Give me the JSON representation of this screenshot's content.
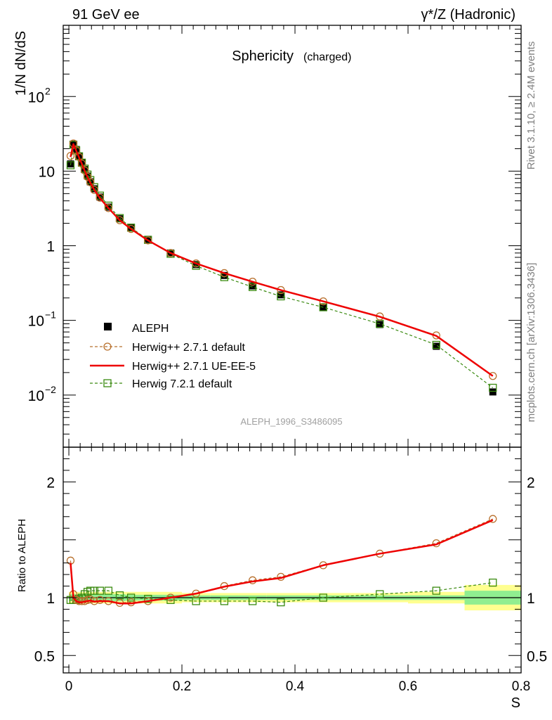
{
  "header": {
    "left": "91 GeV ee",
    "right": "γ*/Z (Hadronic)"
  },
  "side_labels": {
    "rivet": "Rivet 3.1.10, ≥ 2.4M events",
    "mcplots": "mcplots.cern.ch [arXiv:1306.3436]"
  },
  "watermark": "ALEPH_1996_S3486095",
  "chart_data": [
    {
      "type": "line",
      "panel": "main",
      "title": "Sphericity",
      "title_suffix": "(charged)",
      "ylabel": "1/N dN/dS",
      "yscale": "log",
      "ylim": [
        0.002,
        900
      ],
      "xlim": [
        -0.01,
        0.8
      ],
      "y_ticks": [
        {
          "value": 100,
          "label": "10",
          "exp": "2"
        },
        {
          "value": 10,
          "label": "10",
          "exp": ""
        },
        {
          "value": 1,
          "label": "1",
          "exp": ""
        },
        {
          "value": 0.1,
          "label": "10",
          "exp": "−1"
        },
        {
          "value": 0.01,
          "label": "10",
          "exp": "−2"
        }
      ],
      "x": [
        0.003,
        0.008,
        0.013,
        0.018,
        0.023,
        0.028,
        0.033,
        0.038,
        0.045,
        0.055,
        0.07,
        0.09,
        0.11,
        0.14,
        0.18,
        0.225,
        0.275,
        0.325,
        0.375,
        0.45,
        0.55,
        0.65,
        0.75
      ],
      "legend_position": "lower-left",
      "series": [
        {
          "name": "ALEPH",
          "style": "data",
          "color": "#000000",
          "values": [
            12.5,
            23,
            19.5,
            16,
            13,
            10.5,
            8.6,
            7.2,
            5.8,
            4.5,
            3.3,
            2.3,
            1.75,
            1.22,
            0.8,
            0.56,
            0.4,
            0.29,
            0.22,
            0.15,
            0.088,
            0.045,
            0.011
          ]
        },
        {
          "name": "Herwig++ 2.7.1 default",
          "style": "circle-dashed",
          "color": "#b8702d",
          "values": [
            16,
            23.5,
            19,
            15.5,
            12.6,
            10.2,
            8.4,
            7.1,
            5.6,
            4.4,
            3.2,
            2.2,
            1.68,
            1.18,
            0.8,
            0.58,
            0.43,
            0.33,
            0.255,
            0.18,
            0.113,
            0.063,
            0.018
          ]
        },
        {
          "name": "Herwig++ 2.7.1 UE-EE-5",
          "style": "solid",
          "color": "#ee0000",
          "values": [
            15.5,
            23,
            18.8,
            15.3,
            12.5,
            10.1,
            8.3,
            7,
            5.6,
            4.35,
            3.2,
            2.2,
            1.68,
            1.18,
            0.8,
            0.58,
            0.43,
            0.33,
            0.255,
            0.18,
            0.112,
            0.062,
            0.018
          ]
        },
        {
          "name": "Herwig 7.2.1 default",
          "style": "square-dashed",
          "color": "#3a8a10",
          "values": [
            12,
            22.5,
            19,
            15.8,
            13,
            10.8,
            9,
            7.6,
            6.1,
            4.7,
            3.45,
            2.35,
            1.75,
            1.2,
            0.78,
            0.54,
            0.38,
            0.28,
            0.21,
            0.15,
            0.09,
            0.047,
            0.0125
          ]
        }
      ]
    },
    {
      "type": "line",
      "panel": "ratio",
      "ylabel": "Ratio to ALEPH",
      "xlabel": "S",
      "ylim": [
        0.35,
        2.3
      ],
      "xlim": [
        -0.01,
        0.8
      ],
      "y_ticks": [
        {
          "value": 0.5,
          "label": "0.5"
        },
        {
          "value": 1,
          "label": "1"
        },
        {
          "value": 2,
          "label": "2"
        }
      ],
      "x_ticks": [
        {
          "value": 0,
          "label": "0"
        },
        {
          "value": 0.2,
          "label": "0.2"
        },
        {
          "value": 0.4,
          "label": "0.4"
        },
        {
          "value": 0.6,
          "label": "0.6"
        },
        {
          "value": 0.8,
          "label": "0.8"
        }
      ],
      "x": [
        0.003,
        0.008,
        0.013,
        0.018,
        0.023,
        0.028,
        0.033,
        0.038,
        0.045,
        0.055,
        0.07,
        0.09,
        0.11,
        0.14,
        0.18,
        0.225,
        0.275,
        0.325,
        0.375,
        0.45,
        0.55,
        0.65,
        0.75
      ],
      "bands": {
        "edges": [
          0,
          0.1,
          0.2,
          0.25,
          0.3,
          0.35,
          0.4,
          0.5,
          0.6,
          0.7,
          0.8
        ],
        "inner": [
          0.03,
          0.025,
          0.02,
          0.02,
          0.02,
          0.02,
          0.02,
          0.02,
          0.02,
          0.06
        ],
        "outer": [
          0.05,
          0.05,
          0.04,
          0.04,
          0.04,
          0.04,
          0.04,
          0.04,
          0.05,
          0.11
        ],
        "inner_color": "#90ee90",
        "outer_color": "#ffff90"
      },
      "series": [
        {
          "name": "Herwig++ 2.7.1 default",
          "style": "circle-dashed",
          "color": "#b8702d",
          "values": [
            1.32,
            1.03,
            0.98,
            0.97,
            0.97,
            0.97,
            0.98,
            0.985,
            0.97,
            0.98,
            0.97,
            0.955,
            0.96,
            0.97,
            1.0,
            1.035,
            1.1,
            1.15,
            1.18,
            1.28,
            1.38,
            1.47,
            1.68
          ]
        },
        {
          "name": "Herwig++ 2.7.1 UE-EE-5",
          "style": "solid",
          "color": "#ee0000",
          "values": [
            1.3,
            1.0,
            0.97,
            0.96,
            0.96,
            0.965,
            0.97,
            0.975,
            0.965,
            0.97,
            0.97,
            0.95,
            0.95,
            0.97,
            1.0,
            1.035,
            1.095,
            1.14,
            1.17,
            1.28,
            1.38,
            1.46,
            1.67
          ]
        },
        {
          "name": "Herwig 7.2.1 default",
          "style": "square-dashed",
          "color": "#3a8a10",
          "values": [
            0.98,
            0.98,
            0.98,
            0.99,
            1.0,
            1.03,
            1.05,
            1.06,
            1.06,
            1.06,
            1.06,
            1.02,
            1.0,
            0.99,
            0.98,
            0.97,
            0.97,
            0.97,
            0.96,
            1.0,
            1.03,
            1.06,
            1.13
          ]
        }
      ]
    }
  ]
}
